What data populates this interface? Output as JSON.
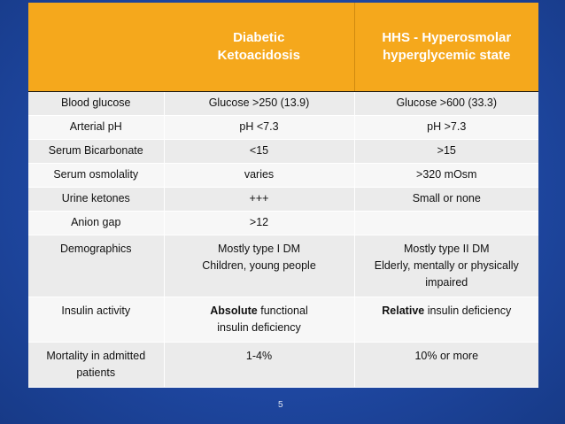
{
  "header": {
    "col1": "",
    "col2_lines": [
      "Diabetic",
      "Ketoacidosis"
    ],
    "col3_lines": [
      "HHS - Hyperosmolar",
      "hyperglycemic state"
    ]
  },
  "rows": [
    {
      "label": "Blood glucose",
      "dka": "Glucose >250 (13.9)",
      "hhs": "Glucose >600 (33.3)"
    },
    {
      "label": "Arterial pH",
      "dka": "pH <7.3",
      "hhs": "pH >7.3"
    },
    {
      "label": "Serum Bicarbonate",
      "dka": "<15",
      "hhs": ">15"
    },
    {
      "label": "Serum osmolality",
      "dka": "varies",
      "hhs": ">320 mOsm"
    },
    {
      "label": "Urine ketones",
      "dka": "+++",
      "hhs": "Small or none"
    },
    {
      "label": "Anion gap",
      "dka": ">12",
      "hhs": ""
    },
    {
      "label": "Demographics",
      "dka_lines": [
        "Mostly type I DM",
        "Children, young people"
      ],
      "hhs_lines": [
        "Mostly type II DM",
        "Elderly, mentally or physically",
        "impaired"
      ]
    },
    {
      "label": "Insulin activity",
      "dka_bold": "Absolute",
      "dka_rest_1": " functional",
      "dka_line2": "insulin deficiency",
      "hhs_bold": "Relative",
      "hhs_rest": " insulin deficiency"
    },
    {
      "label_lines": [
        "Mortality in admitted",
        "patients"
      ],
      "dka": "1-4%",
      "hhs": "10% or more"
    }
  ],
  "page_number": "5"
}
